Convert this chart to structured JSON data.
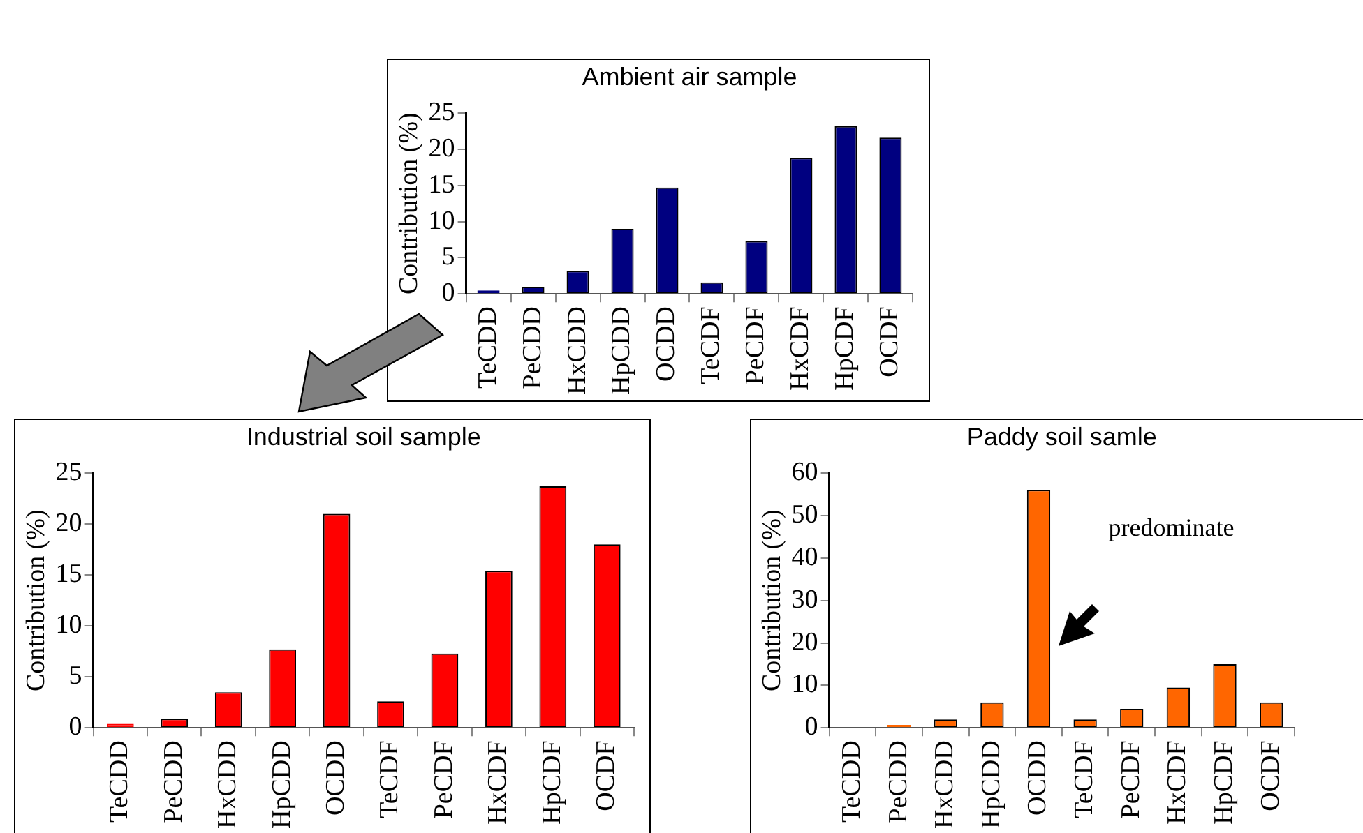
{
  "chart_data": [
    {
      "type": "bar",
      "title": "Ambient air sample",
      "ylabel": "Contribution (%)",
      "categories": [
        "TeCDD",
        "PeCDD",
        "HxCDD",
        "HpCDD",
        "OCDD",
        "TeCDF",
        "PeCDF",
        "HxCDF",
        "HpCDF",
        "OCDF"
      ],
      "values": [
        0.5,
        1,
        3.2,
        9,
        14.7,
        1.6,
        7.3,
        18.8,
        23.2,
        21.6
      ],
      "color": "#000080",
      "ylim": [
        0,
        25
      ],
      "yticks": [
        0,
        5,
        10,
        15,
        20,
        25
      ],
      "grid": false
    },
    {
      "type": "bar",
      "title": "Industrial soil sample",
      "ylabel": "Contribution (%)",
      "categories": [
        "TeCDD",
        "PeCDD",
        "HxCDD",
        "HpCDD",
        "OCDD",
        "TeCDF",
        "PeCDF",
        "HxCDF",
        "HpCDF",
        "OCDF"
      ],
      "values": [
        0.4,
        0.9,
        3.5,
        7.7,
        21,
        2.6,
        7.3,
        15.4,
        23.7,
        18
      ],
      "color": "#ff0000",
      "ylim": [
        0,
        25
      ],
      "yticks": [
        0,
        5,
        10,
        15,
        20,
        25
      ],
      "grid": false
    },
    {
      "type": "bar",
      "title": "Paddy soil samle",
      "ylabel": "Contribution (%)",
      "categories": [
        "TeCDD",
        "PeCDD",
        "HxCDD",
        "HpCDD",
        "OCDD",
        "TeCDF",
        "PeCDF",
        "HxCDF",
        "HpCDF",
        "OCDF"
      ],
      "values": [
        0,
        0.7,
        2,
        6,
        56,
        2,
        4.5,
        9.5,
        15,
        6
      ],
      "color": "#ff6600",
      "ylim": [
        0,
        60
      ],
      "yticks": [
        0,
        10,
        20,
        30,
        40,
        50,
        60
      ],
      "grid": false,
      "annotations": [
        "predominate"
      ]
    }
  ]
}
